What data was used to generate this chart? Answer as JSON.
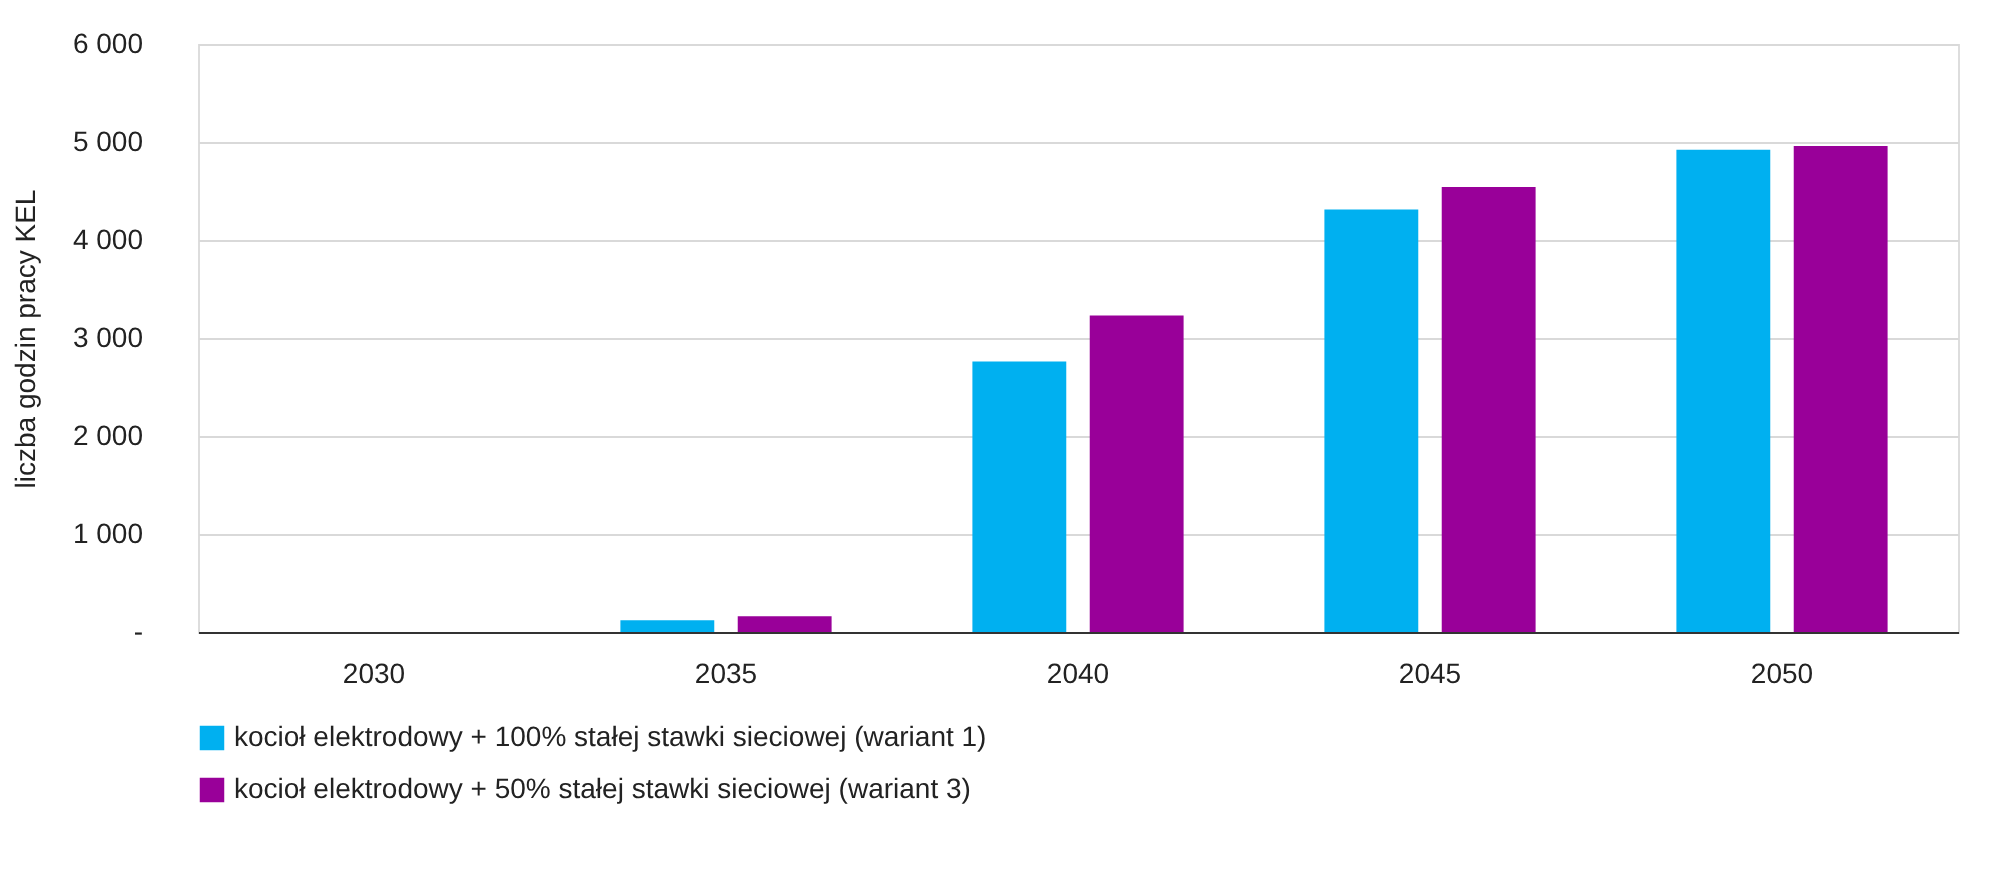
{
  "chart_data": {
    "type": "bar",
    "ylabel": "liczba godzin pracy KEL",
    "categories": [
      "2030",
      "2035",
      "2040",
      "2045",
      "2050"
    ],
    "series": [
      {
        "name": "kocioł elektrodowy + 100% stałej stawki sieciowej (wariant 1)",
        "color": "#00b0f0",
        "values": [
          0,
          120,
          2760,
          4310,
          4920
        ]
      },
      {
        "name": "kocioł elektrodowy + 50% stałej stawki sieciowej (wariant 3)",
        "color": "#990099",
        "values": [
          0,
          160,
          3230,
          4540,
          4960
        ]
      }
    ],
    "ylim": [
      0,
      6000
    ],
    "yticks": [
      {
        "value": 0,
        "label": "-"
      },
      {
        "value": 1000,
        "label": "1 000"
      },
      {
        "value": 2000,
        "label": "2 000"
      },
      {
        "value": 3000,
        "label": "3 000"
      },
      {
        "value": 4000,
        "label": "4 000"
      },
      {
        "value": 5000,
        "label": "5 000"
      },
      {
        "value": 6000,
        "label": "6 000"
      }
    ],
    "grid": "y",
    "legend": "bottom"
  }
}
